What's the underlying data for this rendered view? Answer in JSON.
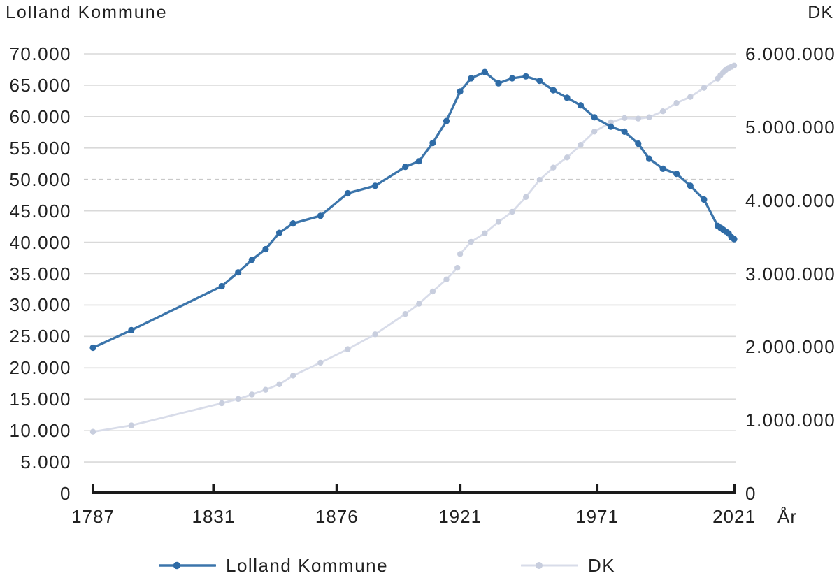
{
  "header": {
    "left_axis_title": "Lolland Kommune",
    "right_axis_title": "DK"
  },
  "axes": {
    "left_ticks": [
      "70.000",
      "65.000",
      "60.000",
      "55.000",
      "50.000",
      "45.000",
      "40.000",
      "35.000",
      "30.000",
      "25.000",
      "20.000",
      "15.000",
      "10.000",
      "5.000",
      "0"
    ],
    "right_ticks": [
      "6.000.000",
      "5.000.000",
      "4.000.000",
      "3.000.000",
      "2.000.000",
      "1.000.000",
      "0"
    ],
    "x_ticks": [
      1787,
      1831,
      1876,
      1921,
      1971,
      2021
    ],
    "x_axis_title": "År",
    "dashed_gridline_at": "50.000"
  },
  "legend": {
    "items": [
      {
        "label": "Lolland Kommune",
        "line_color": "#3c75ab",
        "dot_color": "#2e6ba6"
      },
      {
        "label": "DK",
        "line_color": "#d8dce9",
        "dot_color": "#c8cede"
      }
    ]
  },
  "colors": {
    "gridline": "#d9d9d9",
    "dashed_gridline": "#c9c9c9",
    "axis": "#1a1a1a",
    "text": "#212121",
    "background": "#ffffff"
  },
  "chart_data": {
    "type": "line",
    "title": "",
    "x_axis_label": "År",
    "x_range": [
      1787,
      2021
    ],
    "grid": true,
    "legend_position": "bottom",
    "left_axis": {
      "title": "Lolland Kommune",
      "range": [
        0,
        70000
      ],
      "tick_step": 5000,
      "dashed_gridline_value": 50000
    },
    "right_axis": {
      "title": "DK",
      "range": [
        0,
        6000000
      ],
      "tick_step": 1000000
    },
    "series": [
      {
        "name": "Lolland Kommune",
        "axis": "left",
        "x": [
          1787,
          1801,
          1834,
          1840,
          1845,
          1850,
          1855,
          1860,
          1870,
          1880,
          1890,
          1901,
          1906,
          1911,
          1916,
          1921,
          1925,
          1930,
          1935,
          1940,
          1945,
          1950,
          1955,
          1960,
          1965,
          1970,
          1976,
          1981,
          1986,
          1990,
          1995,
          2000,
          2005,
          2010,
          2015,
          2016,
          2017,
          2018,
          2019,
          2020,
          2021
        ],
        "values": [
          23200,
          26000,
          33000,
          35200,
          37200,
          38900,
          41500,
          43000,
          44200,
          47800,
          49000,
          52000,
          52900,
          55800,
          59300,
          64000,
          66100,
          67100,
          65300,
          66100,
          66400,
          65700,
          64200,
          63000,
          61800,
          59900,
          58400,
          57600,
          55700,
          53300,
          51700,
          50900,
          49000,
          46800,
          42600,
          42300,
          42000,
          41700,
          41400,
          40800,
          40500
        ]
      },
      {
        "name": "DK",
        "axis": "right",
        "gap_after_year": 1920,
        "x": [
          1787,
          1801,
          1834,
          1840,
          1845,
          1850,
          1855,
          1860,
          1870,
          1880,
          1890,
          1901,
          1906,
          1911,
          1916,
          1920,
          1921,
          1925,
          1930,
          1935,
          1940,
          1945,
          1950,
          1955,
          1960,
          1965,
          1970,
          1976,
          1981,
          1986,
          1990,
          1995,
          2000,
          2005,
          2010,
          2015,
          2016,
          2017,
          2018,
          2019,
          2020,
          2021
        ],
        "values": [
          842000,
          929000,
          1231000,
          1289000,
          1350000,
          1415000,
          1490000,
          1608000,
          1785000,
          1969000,
          2172000,
          2450000,
          2589000,
          2757000,
          2921000,
          3079000,
          3268000,
          3435000,
          3551000,
          3706000,
          3844000,
          4045000,
          4281000,
          4448000,
          4585000,
          4758000,
          4938000,
          5065000,
          5124000,
          5116000,
          5135000,
          5216000,
          5330000,
          5411000,
          5535000,
          5660000,
          5707000,
          5749000,
          5781000,
          5806000,
          5823000,
          5840000
        ]
      }
    ]
  }
}
